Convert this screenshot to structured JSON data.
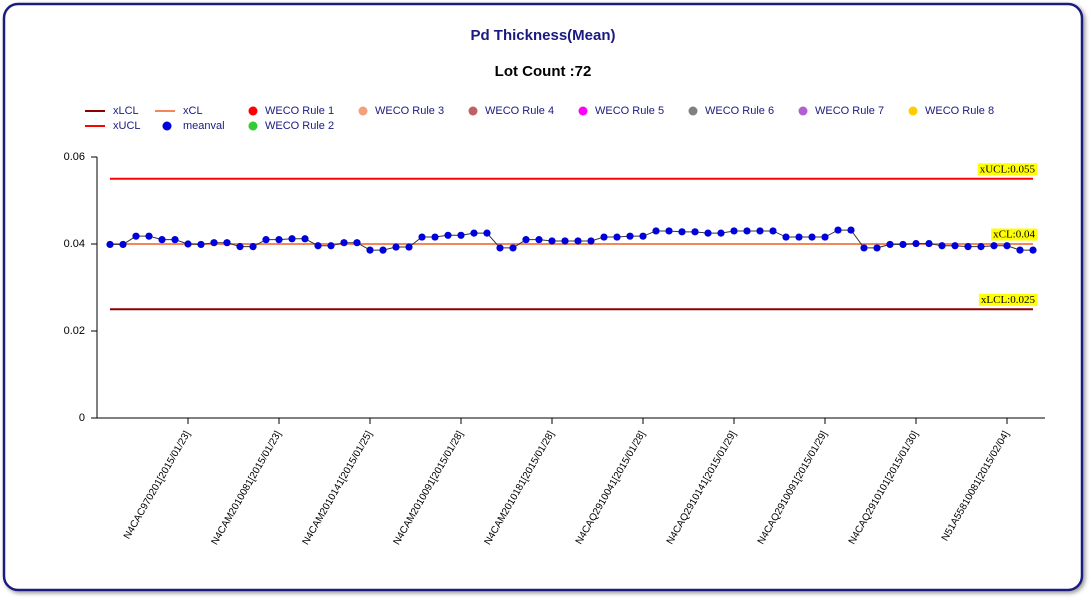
{
  "chart_data": {
    "type": "line",
    "title": "Pd Thickness(Mean)",
    "subtitle": "Lot Count :72",
    "ylim": [
      0,
      0.06
    ],
    "yticks": [
      0,
      0.02,
      0.04,
      0.06
    ],
    "categories": [
      null,
      null,
      null,
      null,
      null,
      null,
      "N4CAC970201[2015/01/23]",
      null,
      null,
      null,
      null,
      null,
      null,
      "N4CAM2010081[2015/01/23]",
      null,
      null,
      null,
      null,
      null,
      null,
      "N4CAM2010141[2015/01/25]",
      null,
      null,
      null,
      null,
      null,
      null,
      "N4CAM2010091[2015/01/28]",
      null,
      null,
      null,
      null,
      null,
      null,
      "N4CAM2010181[2015/01/28]",
      null,
      null,
      null,
      null,
      null,
      null,
      "N4CAQ2910041[2015/01/28]",
      null,
      null,
      null,
      null,
      null,
      null,
      "N4CAQ2910141[2015/01/29]",
      null,
      null,
      null,
      null,
      null,
      null,
      "N4CAQ2910091[2015/01/29]",
      null,
      null,
      null,
      null,
      null,
      null,
      "N4CAQ2910101[2015/01/30]",
      null,
      null,
      null,
      null,
      null,
      null,
      "N51A55810081[2015/02/04]",
      null,
      null
    ],
    "limits": [
      {
        "name": "xLCL",
        "color": "#8b0000",
        "value": 0.025,
        "label": "xLCL:0.025"
      },
      {
        "name": "xUCL",
        "color": "#ff0000",
        "value": 0.055,
        "label": "xUCL:0.055"
      },
      {
        "name": "xCL",
        "color": "#f4875a",
        "value": 0.04,
        "label": "xCL:0.04"
      }
    ],
    "series": [
      {
        "name": "meanval",
        "color": "#0000dd",
        "values": [
          0.0399,
          0.0399,
          0.0418,
          0.0418,
          0.041,
          0.041,
          0.04,
          0.0399,
          0.0403,
          0.0403,
          0.0394,
          0.0394,
          0.041,
          0.041,
          0.0412,
          0.0412,
          0.0396,
          0.0396,
          0.0403,
          0.0403,
          0.0386,
          0.0386,
          0.0393,
          0.0393,
          0.0416,
          0.0416,
          0.042,
          0.042,
          0.0425,
          0.0425,
          0.0391,
          0.0391,
          0.041,
          0.041,
          0.0407,
          0.0407,
          0.0407,
          0.0407,
          0.0416,
          0.0416,
          0.0418,
          0.0418,
          0.043,
          0.043,
          0.0428,
          0.0428,
          0.0425,
          0.0425,
          0.043,
          0.043,
          0.043,
          0.043,
          0.0416,
          0.0416,
          0.0416,
          0.0416,
          0.0432,
          0.0432,
          0.0391,
          0.0391,
          0.0399,
          0.0399,
          0.0401,
          0.0401,
          0.0396,
          0.0396,
          0.0394,
          0.0394,
          0.0396,
          0.0396,
          0.0386,
          0.0386
        ]
      }
    ],
    "rules": [
      {
        "name": "WECO Rule 1",
        "color": "#ff0000"
      },
      {
        "name": "WECO Rule 2",
        "color": "#33cc33"
      },
      {
        "name": "WECO Rule 3",
        "color": "#f4a07a"
      },
      {
        "name": "WECO Rule 4",
        "color": "#c06060"
      },
      {
        "name": "WECO Rule 5",
        "color": "#ff00ff"
      },
      {
        "name": "WECO Rule 6",
        "color": "#808080"
      },
      {
        "name": "WECO Rule 7",
        "color": "#b060d0"
      },
      {
        "name": "WECO Rule 8",
        "color": "#ffcc00"
      }
    ]
  }
}
